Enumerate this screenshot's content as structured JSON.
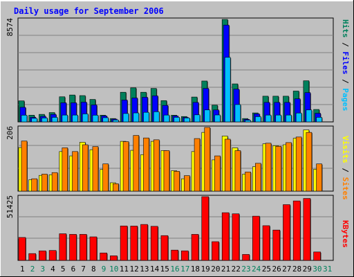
{
  "chart_data": [
    {
      "type": "bar",
      "title": "Daily usage for September 2006",
      "categories": [
        "1",
        "2",
        "3",
        "4",
        "5",
        "6",
        "7",
        "8",
        "9",
        "10",
        "11",
        "12",
        "13",
        "14",
        "15",
        "16",
        "17",
        "18",
        "19",
        "20",
        "21",
        "22",
        "23",
        "24",
        "25",
        "26",
        "27",
        "28",
        "29",
        "30",
        "31"
      ],
      "weekend_days": [
        "2",
        "3",
        "9",
        "10",
        "16",
        "17",
        "23",
        "24",
        "30",
        "31"
      ],
      "ymax_label": "8574",
      "ylim": [
        0,
        8574
      ],
      "ylabel": [
        "Pages",
        "Files",
        "Hits"
      ],
      "series": [
        {
          "name": "Hits",
          "color": "#00805c",
          "values": [
            1760,
            560,
            630,
            780,
            2100,
            2250,
            2200,
            1880,
            560,
            280,
            2480,
            2850,
            2480,
            2800,
            1780,
            560,
            450,
            2080,
            3420,
            1400,
            8574,
            3180,
            280,
            750,
            2150,
            2150,
            2150,
            2580,
            3440,
            1040,
            0
          ]
        },
        {
          "name": "Files",
          "color": "#0000ff",
          "values": [
            1220,
            380,
            460,
            630,
            1600,
            1600,
            1650,
            1420,
            500,
            230,
            1830,
            2000,
            2060,
            2180,
            1380,
            500,
            380,
            1630,
            2800,
            1000,
            8100,
            2740,
            210,
            670,
            1630,
            1630,
            1630,
            1930,
            2450,
            720,
            0
          ]
        },
        {
          "name": "Pages",
          "color": "#00c0ff",
          "values": [
            560,
            300,
            330,
            380,
            570,
            570,
            670,
            560,
            350,
            160,
            700,
            750,
            800,
            850,
            570,
            380,
            330,
            590,
            1000,
            580,
            5400,
            1450,
            140,
            440,
            570,
            570,
            570,
            740,
            1000,
            380,
            0
          ]
        }
      ]
    },
    {
      "type": "bar",
      "categories": [
        "1",
        "2",
        "3",
        "4",
        "5",
        "6",
        "7",
        "8",
        "9",
        "10",
        "11",
        "12",
        "13",
        "14",
        "15",
        "16",
        "17",
        "18",
        "19",
        "20",
        "21",
        "22",
        "23",
        "24",
        "25",
        "26",
        "27",
        "28",
        "29",
        "30",
        "31"
      ],
      "ymax_label": "206",
      "ylim": [
        0,
        206
      ],
      "ylabel": [
        "Sites",
        "Visits"
      ],
      "series": [
        {
          "name": "Visits",
          "color": "#ffff00",
          "values": [
            141,
            37,
            51,
            53,
            128,
            114,
            158,
            134,
            70,
            27,
            161,
            132,
            118,
            161,
            131,
            66,
            40,
            128,
            190,
            101,
            178,
            140,
            55,
            79,
            153,
            147,
            150,
            171,
            198,
            71,
            0
          ]
        },
        {
          "name": "Sites",
          "color": "#ff8000",
          "values": [
            162,
            40,
            55,
            60,
            140,
            128,
            150,
            144,
            88,
            24,
            160,
            180,
            172,
            166,
            131,
            64,
            50,
            170,
            206,
            114,
            168,
            131,
            62,
            90,
            155,
            145,
            157,
            175,
            190,
            88,
            0
          ]
        }
      ]
    },
    {
      "type": "bar",
      "categories": [
        "1",
        "2",
        "3",
        "4",
        "5",
        "6",
        "7",
        "8",
        "9",
        "10",
        "11",
        "12",
        "13",
        "14",
        "15",
        "16",
        "17",
        "18",
        "19",
        "20",
        "21",
        "22",
        "23",
        "24",
        "25",
        "26",
        "27",
        "28",
        "29",
        "30",
        "31"
      ],
      "ymax_label": "51425",
      "ylim": [
        0,
        51425
      ],
      "ylabel": [
        "KBytes"
      ],
      "series": [
        {
          "name": "KBytes",
          "color": "#ff0000",
          "values": [
            18500,
            5500,
            7700,
            8000,
            21500,
            21000,
            21000,
            19000,
            6000,
            3700,
            27800,
            27700,
            29000,
            27500,
            20000,
            8300,
            7700,
            21000,
            51425,
            15100,
            38500,
            37600,
            4800,
            35700,
            28000,
            24500,
            45000,
            48000,
            50000,
            6800,
            0
          ]
        }
      ]
    }
  ]
}
